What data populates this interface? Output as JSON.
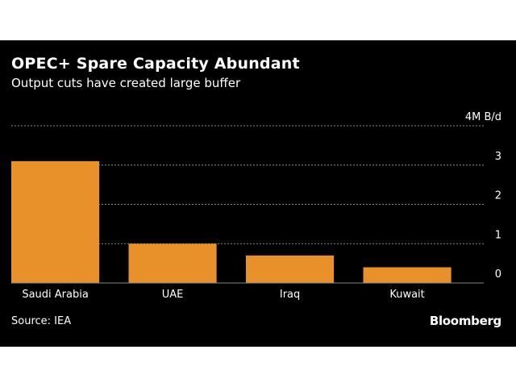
{
  "colors": {
    "background": "#000000",
    "bar": "#e8912a",
    "text": "#ffffff",
    "grid": "#8a8a8a"
  },
  "title": "OPEC+ Spare Capacity Abundant",
  "subtitle": "Output cuts have created large buffer",
  "source": "Source: IEA",
  "brand": "Bloomberg",
  "chart_data": {
    "type": "bar",
    "categories": [
      "Saudi Arabia",
      "UAE",
      "Iraq",
      "Kuwait"
    ],
    "values": [
      3.1,
      1.0,
      0.7,
      0.4
    ],
    "ylim": [
      0,
      4
    ],
    "yticks": [
      0,
      1,
      2,
      3,
      4
    ],
    "ytick_labels": [
      "0",
      "1",
      "2",
      "3",
      "4M B/d"
    ],
    "grid": true,
    "y_axis_side": "right"
  }
}
